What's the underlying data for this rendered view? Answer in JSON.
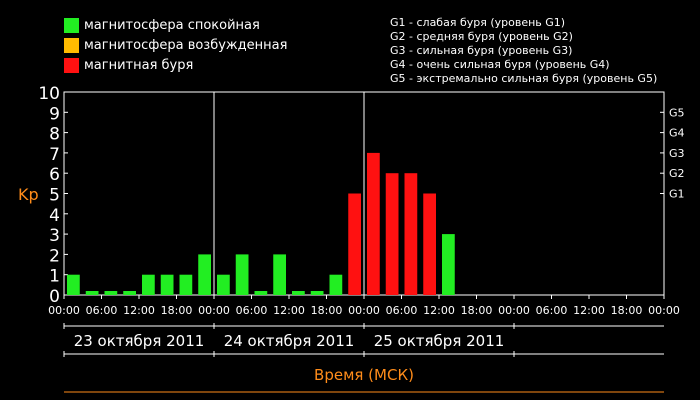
{
  "legend": [
    {
      "label": "магнитосфера спокойная",
      "color": "#22ee22"
    },
    {
      "label": "магнитосфера возбужденная",
      "color": "#ffbb00"
    },
    {
      "label": "магнитная буря",
      "color": "#ff1111"
    }
  ],
  "g_legend": [
    "G1 - слабая буря (уровень G1)",
    "G2 - средняя буря (уровень G2)",
    "G3 - сильная буря (уровень G3)",
    "G4 - очень сильная буря (уровень G4)",
    "G5 - экстремально сильная буря (уровень G5)"
  ],
  "chart_data": {
    "type": "bar",
    "ylabel": "Kp",
    "xlabel": "Время (МСК)",
    "ylim": [
      0,
      10
    ],
    "y_ticks": [
      "0",
      "1",
      "2",
      "3",
      "4",
      "5",
      "6",
      "7",
      "8",
      "9",
      "10"
    ],
    "g_levels": [
      {
        "label": "G1",
        "kp": 5
      },
      {
        "label": "G2",
        "kp": 6
      },
      {
        "label": "G3",
        "kp": 7
      },
      {
        "label": "G4",
        "kp": 8
      },
      {
        "label": "G5",
        "kp": 9
      }
    ],
    "x_ticks": [
      "00:00",
      "06:00",
      "12:00",
      "18:00",
      "00:00",
      "06:00",
      "12:00",
      "18:00",
      "00:00",
      "06:00",
      "12:00",
      "18:00",
      "00:00",
      "06:00",
      "12:00",
      "18:00",
      "00:00"
    ],
    "days": [
      "23 октября 2011",
      "24 октября 2011",
      "25 октября 2011"
    ],
    "interval_hours": 3,
    "values": [
      1,
      0,
      0,
      0,
      1,
      1,
      1,
      2,
      1,
      2,
      0,
      2,
      0,
      0,
      1,
      5,
      7,
      6,
      6,
      5,
      3
    ],
    "colors": {
      "quiet": "#22ee22",
      "storm": "#ff1111"
    },
    "storm_threshold": 5
  }
}
